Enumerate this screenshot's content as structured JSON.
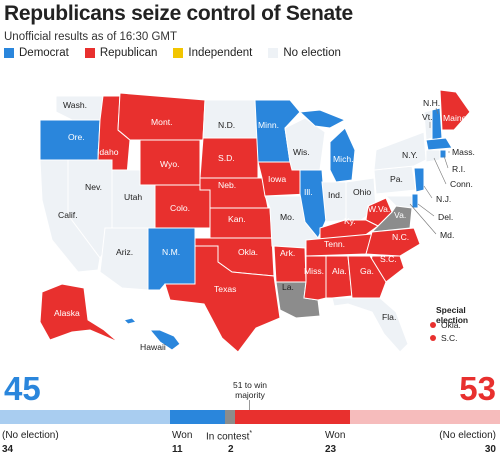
{
  "header": {
    "title": "Republicans seize control of Senate",
    "subtitle": "Unofficial results as of 16:30 GMT"
  },
  "legend": [
    {
      "label": "Democrat",
      "color": "#2a86dc"
    },
    {
      "label": "Republican",
      "color": "#e8302e"
    },
    {
      "label": "Independent",
      "color": "#f2c500"
    },
    {
      "label": "No election",
      "color": "#eef2f6"
    }
  ],
  "colors": {
    "democrat": "#2a86dc",
    "republican": "#e8302e",
    "no_election": "#eef2f6",
    "contest": "#8c8c8c",
    "dem_light": "#a9cdf0",
    "rep_light": "#f6bcbc",
    "border": "#ffffff"
  },
  "state_labels": {
    "wash": "Wash.",
    "ore": "Ore.",
    "idaho": "Idaho",
    "mont": "Mont.",
    "wyo": "Wyo.",
    "nd": "N.D.",
    "sd": "S.D.",
    "minn": "Minn.",
    "wis": "Wis.",
    "mich": "Mich.",
    "nev": "Nev.",
    "utah": "Utah",
    "calif": "Calif.",
    "colo": "Colo.",
    "neb": "Neb.",
    "iowa": "Iowa",
    "ill": "Ill.",
    "ind": "Ind.",
    "ohio": "Ohio",
    "pa": "Pa.",
    "ny": "N.Y.",
    "ariz": "Ariz.",
    "nm": "N.M.",
    "kan": "Kan.",
    "mo": "Mo.",
    "ky": "Ky.",
    "wva": "W.Va.",
    "va": "Va.",
    "okla": "Okla.",
    "ark": "Ark.",
    "tenn": "Tenn.",
    "nc": "N.C.",
    "sc": "S.C.",
    "texas": "Texas",
    "la": "La.",
    "miss": "Miss.",
    "ala": "Ala.",
    "ga": "Ga.",
    "fla": "Fla.",
    "alaska": "Alaska",
    "hawaii": "Hawaii",
    "nh": "N.H.",
    "vt": "Vt.",
    "maine": "Maine",
    "mass": "Mass.",
    "ri": "R.I.",
    "conn": "Conn.",
    "nj": "N.J.",
    "del": "Del.",
    "md": "Md."
  },
  "special_election": {
    "title": "Special election",
    "items": [
      "Okla.",
      "S.C."
    ]
  },
  "tally": {
    "dem_total": "45",
    "rep_total": "53",
    "win_threshold": "51 to win majority",
    "segments": [
      {
        "name": "dem-no-election",
        "value": 34,
        "color": "#a9cdf0"
      },
      {
        "name": "dem-won",
        "value": 11,
        "color": "#2a86dc"
      },
      {
        "name": "in-contest",
        "value": 2,
        "color": "#8c8c8c"
      },
      {
        "name": "rep-won",
        "value": 23,
        "color": "#e8302e"
      },
      {
        "name": "rep-no-election",
        "value": 30,
        "color": "#f6bcbc"
      }
    ],
    "captions": {
      "dem_no_election": "(No election)",
      "dem_won": "Won",
      "in_contest": "In contest",
      "in_contest_mark": "*",
      "rep_won": "Won",
      "rep_no_election": "(No election)"
    },
    "counts": {
      "dem_no_election": "34",
      "dem_won": "11",
      "in_contest": "2",
      "rep_won": "23",
      "rep_no_election": "30"
    }
  }
}
